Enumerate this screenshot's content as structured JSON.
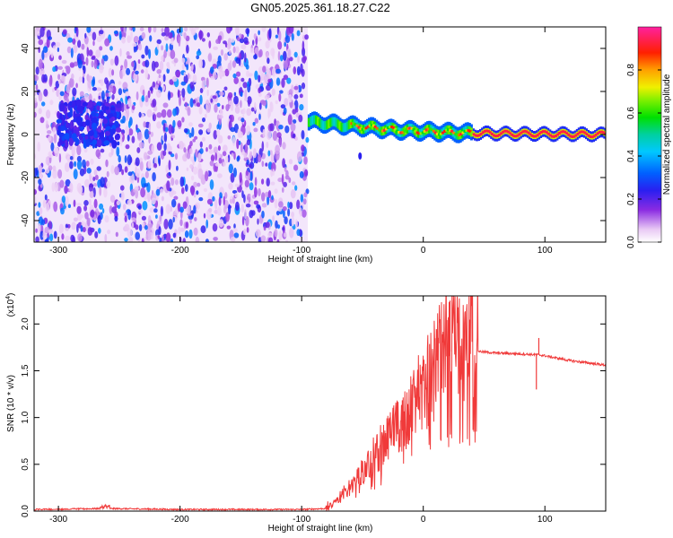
{
  "title": "GN05.2025.361.18.27.C22",
  "chart_data": [
    {
      "type": "heatmap",
      "name": "spectrogram",
      "xlabel": "Height of straight line (km)",
      "ylabel": "Frequency (Hz)",
      "xlim": [
        -320,
        150
      ],
      "ylim": [
        -50,
        50
      ],
      "xticks": [
        -300,
        -200,
        -100,
        0,
        100
      ],
      "yticks": [
        -40,
        -20,
        0,
        20,
        40
      ],
      "colorbar": {
        "label": "Normalized spectral amplitude",
        "range": [
          0,
          1
        ],
        "ticks": [
          0.0,
          0.2,
          0.4,
          0.6,
          0.8
        ]
      },
      "regions": [
        {
          "description": "broadband noise",
          "x_range": [
            -320,
            -95
          ],
          "freq_range": [
            -50,
            50
          ],
          "amplitude": 0.15
        },
        {
          "description": "noise concentration",
          "x_range": [
            -300,
            -250
          ],
          "freq_range": [
            -5,
            15
          ],
          "amplitude": 0.25
        },
        {
          "description": "narrowband signal",
          "x_range": [
            -95,
            150
          ],
          "center_freq_hz": [
            6,
            4,
            2,
            1,
            0.5,
            0
          ],
          "center_at_x": [
            -95,
            -60,
            -20,
            20,
            50,
            150
          ],
          "amplitude": 0.95
        },
        {
          "description": "isolated artifact",
          "x": -52,
          "freq_hz": -10,
          "amplitude": 0.2
        }
      ]
    },
    {
      "type": "line",
      "name": "snr",
      "xlabel": "Height of straight line (km)",
      "ylabel": "SNR (10 * v/v)",
      "y_scale_label": "(x10",
      "y_scale_exponent": "4",
      "xlim": [
        -320,
        150
      ],
      "ylim": [
        0,
        2.3
      ],
      "xticks": [
        -300,
        -200,
        -100,
        0,
        100
      ],
      "yticks": [
        "0.0",
        "0.5",
        "1.0",
        "1.5",
        "2.0"
      ],
      "series": [
        {
          "name": "SNR",
          "color": "#f03a3a",
          "x": [
            -320,
            -260,
            -200,
            -100,
            -80,
            -75,
            -60,
            -40,
            -20,
            0,
            10,
            20,
            30,
            40,
            50,
            60,
            80,
            95,
            100,
            120,
            150
          ],
          "y": [
            0.01,
            0.02,
            0.01,
            0.01,
            0.02,
            0.06,
            0.25,
            0.55,
            0.85,
            1.2,
            1.45,
            1.7,
            1.72,
            1.72,
            1.7,
            1.69,
            1.68,
            1.67,
            1.66,
            1.61,
            1.56
          ]
        }
      ],
      "peak_annotations": [
        {
          "x": 22,
          "y": 2.25
        },
        {
          "x": 95,
          "y": 1.85
        },
        {
          "x": 93,
          "y": 1.3
        }
      ]
    }
  ]
}
